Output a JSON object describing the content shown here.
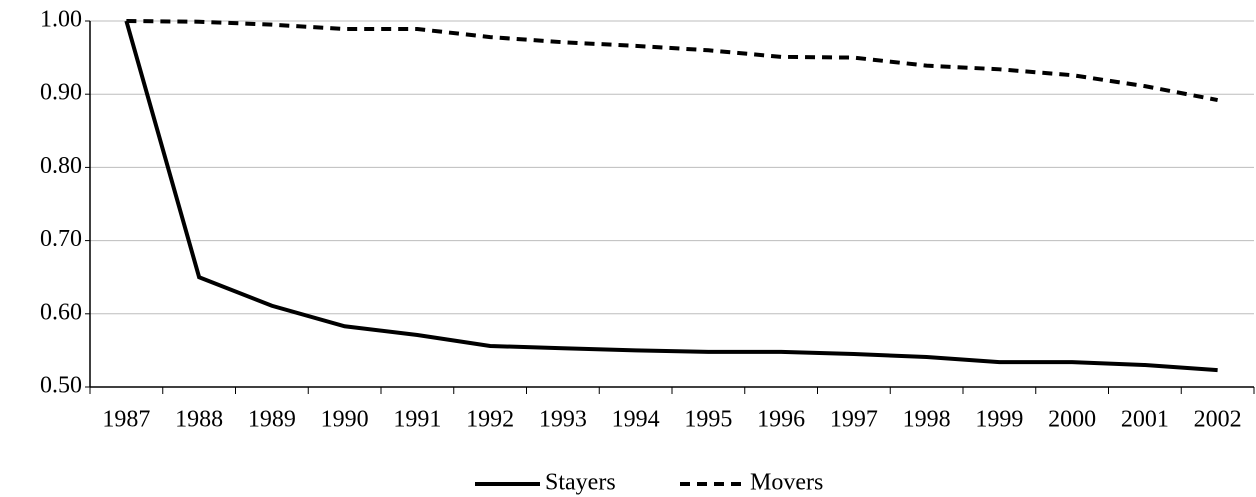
{
  "chart_data": {
    "type": "line",
    "categories": [
      "1987",
      "1988",
      "1989",
      "1990",
      "1991",
      "1992",
      "1993",
      "1994",
      "1995",
      "1996",
      "1997",
      "1998",
      "1999",
      "2000",
      "2001",
      "2002"
    ],
    "series": [
      {
        "name": "Stayers",
        "color": "#000000",
        "line_style": "solid",
        "values": [
          1.0,
          0.65,
          0.611,
          0.583,
          0.571,
          0.556,
          0.553,
          0.55,
          0.548,
          0.548,
          0.545,
          0.541,
          0.534,
          0.534,
          0.53,
          0.523
        ]
      },
      {
        "name": "Movers",
        "color": "#000000",
        "line_style": "dashed",
        "values": [
          1.0,
          0.999,
          0.995,
          0.989,
          0.989,
          0.978,
          0.971,
          0.966,
          0.96,
          0.951,
          0.95,
          0.939,
          0.934,
          0.926,
          0.911,
          0.892
        ]
      }
    ],
    "ylim": [
      0.5,
      1.0
    ],
    "yticks": [
      {
        "value": 0.5,
        "label": "0.50"
      },
      {
        "value": 0.6,
        "label": "0.60"
      },
      {
        "value": 0.7,
        "label": "0.70"
      },
      {
        "value": 0.8,
        "label": "0.80"
      },
      {
        "value": 0.9,
        "label": "0.90"
      },
      {
        "value": 1.0,
        "label": "1.00"
      }
    ],
    "grid": true,
    "legend": "bottom"
  }
}
